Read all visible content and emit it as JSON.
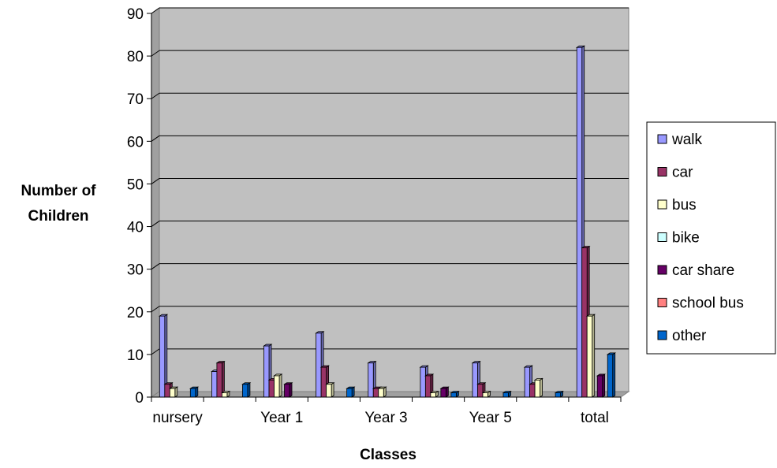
{
  "chart_data": {
    "type": "bar",
    "title": "",
    "xlabel": "Classes",
    "ylabel_lines": [
      "Number of",
      "Children"
    ],
    "ylim": [
      0,
      90
    ],
    "yticks": [
      0,
      10,
      20,
      30,
      40,
      50,
      60,
      70,
      80,
      90
    ],
    "categories": [
      "nursery",
      "",
      "Year 1",
      "",
      "Year 3",
      "",
      "Year 5",
      "",
      "total"
    ],
    "grid": true,
    "legend_position": "right",
    "series": [
      {
        "name": "walk",
        "color": "#9999ff",
        "values": [
          19,
          6,
          12,
          15,
          8,
          7,
          8,
          7,
          82
        ]
      },
      {
        "name": "car",
        "color": "#993366",
        "values": [
          3,
          8,
          4,
          7,
          2,
          5,
          3,
          3,
          35
        ]
      },
      {
        "name": "bus",
        "color": "#ffffcc",
        "values": [
          2,
          1,
          5,
          3,
          2,
          1,
          1,
          4,
          19
        ]
      },
      {
        "name": "bike",
        "color": "#ccffff",
        "values": [
          0,
          0,
          0,
          0,
          0,
          0,
          0,
          0,
          0
        ]
      },
      {
        "name": "car share",
        "color": "#660066",
        "values": [
          0,
          0,
          3,
          0,
          0,
          2,
          0,
          0,
          5
        ]
      },
      {
        "name": "school bus",
        "color": "#ff8080",
        "values": [
          0,
          0,
          0,
          0,
          0,
          0,
          0,
          0,
          0
        ]
      },
      {
        "name": "other",
        "color": "#0066cc",
        "values": [
          2,
          3,
          0,
          2,
          0,
          1,
          1,
          1,
          10
        ]
      }
    ]
  }
}
